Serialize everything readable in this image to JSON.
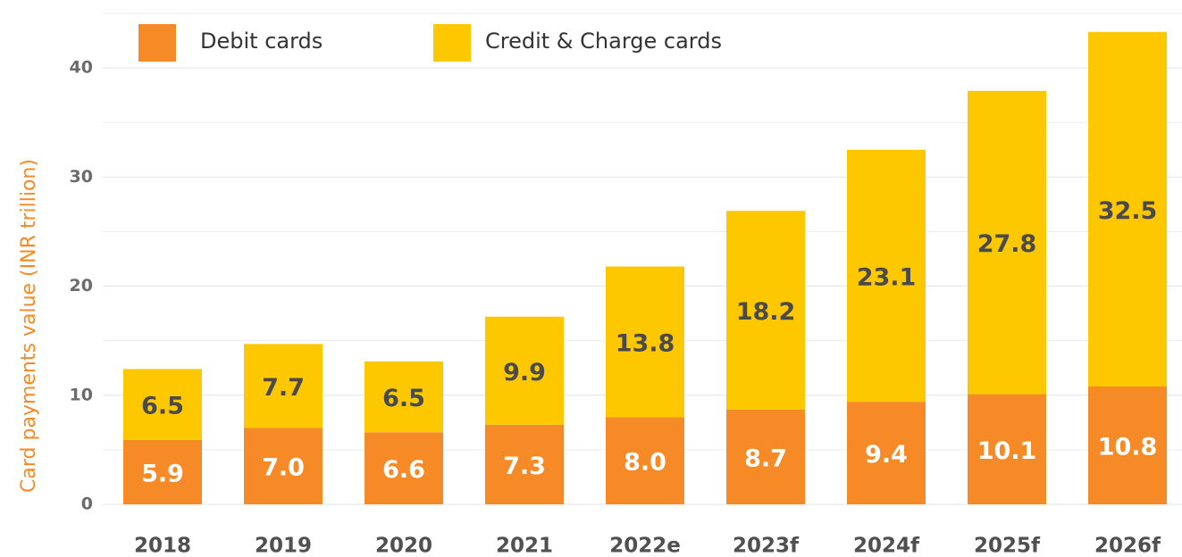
{
  "chart_data": {
    "type": "stacked_bar",
    "y_label": "Card payments value (INR trillion)",
    "categories": [
      "2018",
      "2019",
      "2020",
      "2021",
      "2022e",
      "2023f",
      "2024f",
      "2025f",
      "2026f"
    ],
    "series": [
      {
        "name": "Debit cards",
        "color": "#f58a26",
        "values": [
          5.9,
          7.0,
          6.6,
          7.3,
          8.0,
          8.7,
          9.4,
          10.1,
          10.8
        ],
        "value_labels": [
          "5.9",
          "7.0",
          "6.6",
          "7.3",
          "8.0",
          "8.7",
          "9.4",
          "10.1",
          "10.8"
        ]
      },
      {
        "name": "Credit & Charge cards",
        "color": "#fdc800",
        "values": [
          6.5,
          7.7,
          6.5,
          9.9,
          13.8,
          18.2,
          23.1,
          27.8,
          32.5
        ],
        "value_labels": [
          "6.5",
          "7.7",
          "6.5",
          "9.9",
          "13.8",
          "18.2",
          "23.1",
          "27.8",
          "32.5"
        ]
      }
    ],
    "ylim": [
      0,
      45
    ],
    "yticks": [
      0,
      10,
      20,
      30,
      40
    ],
    "minor_grid": [
      5,
      15,
      25,
      35,
      45
    ],
    "grid": true
  }
}
